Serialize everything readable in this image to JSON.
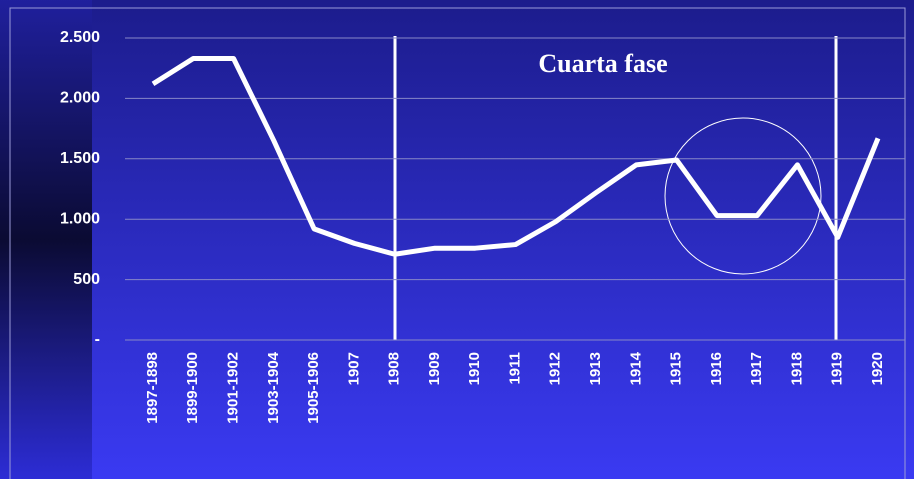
{
  "chart_data": {
    "type": "line",
    "annotation": "Cuarta fase",
    "categories": [
      "1897-1898",
      "1899-1900",
      "1901-1902",
      "1903-1904",
      "1905-1906",
      "1907",
      "1908",
      "1909",
      "1910",
      "1911",
      "1912",
      "1913",
      "1914",
      "1915",
      "1916",
      "1917",
      "1918",
      "1919",
      "1920"
    ],
    "values": [
      2120,
      2330,
      2330,
      1650,
      920,
      800,
      710,
      760,
      760,
      790,
      980,
      1220,
      1450,
      1490,
      1030,
      1030,
      1450,
      850,
      1670
    ],
    "color": "#ffffff",
    "ylim": [
      0,
      2500
    ],
    "yticks": [
      {
        "value": 0,
        "label": "-"
      },
      500,
      {
        "value": 1000,
        "label": "1.000"
      },
      {
        "value": 1500,
        "label": "1.500"
      },
      {
        "value": 2000,
        "label": "2.000"
      },
      {
        "value": 2500,
        "label": "2.500"
      }
    ],
    "grid": true
  }
}
